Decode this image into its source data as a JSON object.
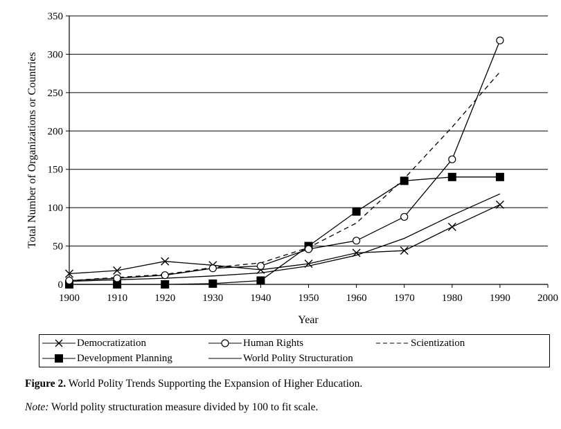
{
  "chart_data": {
    "type": "line",
    "title": "",
    "xlabel": "Year",
    "ylabel": "Total Number of Organizations or Countries",
    "xlim": [
      1900,
      2000
    ],
    "ylim": [
      0,
      350
    ],
    "xticks": [
      1900,
      1910,
      1920,
      1930,
      1940,
      1950,
      1960,
      1970,
      1980,
      1990,
      2000
    ],
    "yticks": [
      0,
      50,
      100,
      150,
      200,
      250,
      300,
      350
    ],
    "grid": "horizontal",
    "series": [
      {
        "name": "Democratization",
        "marker": "x",
        "dash": "solid",
        "x": [
          1900,
          1910,
          1920,
          1930,
          1940,
          1950,
          1960,
          1970,
          1980,
          1990
        ],
        "y": [
          14,
          18,
          30,
          25,
          19,
          27,
          41,
          44,
          75,
          104
        ]
      },
      {
        "name": "Human Rights",
        "marker": "circle",
        "dash": "solid",
        "x": [
          1900,
          1910,
          1920,
          1930,
          1940,
          1950,
          1960,
          1970,
          1980,
          1990
        ],
        "y": [
          5,
          8,
          12,
          21,
          24,
          46,
          57,
          88,
          163,
          318
        ]
      },
      {
        "name": "Scientization",
        "marker": "none",
        "dash": "dashed",
        "x": [
          1900,
          1910,
          1920,
          1930,
          1940,
          1950,
          1960,
          1970,
          1980,
          1990
        ],
        "y": [
          5,
          9,
          13,
          22,
          28,
          48,
          80,
          138,
          205,
          277
        ]
      },
      {
        "name": "Development Planning",
        "marker": "square",
        "dash": "solid",
        "x": [
          1900,
          1910,
          1920,
          1930,
          1940,
          1950,
          1960,
          1970,
          1980,
          1990
        ],
        "y": [
          0,
          0,
          0,
          1,
          5,
          50,
          95,
          135,
          140,
          140
        ]
      },
      {
        "name": "World Polity Structuration",
        "marker": "none",
        "dash": "solid",
        "x": [
          1900,
          1910,
          1920,
          1930,
          1940,
          1950,
          1960,
          1970,
          1980,
          1990
        ],
        "y": [
          4,
          6,
          8,
          11,
          15,
          24,
          38,
          60,
          90,
          118
        ]
      }
    ]
  },
  "caption": {
    "label": "Figure 2.",
    "text": "World Polity Trends Supporting the Expansion of Higher Education."
  },
  "note": {
    "label": "Note:",
    "text": "World polity structuration measure divided by 100 to fit scale."
  }
}
